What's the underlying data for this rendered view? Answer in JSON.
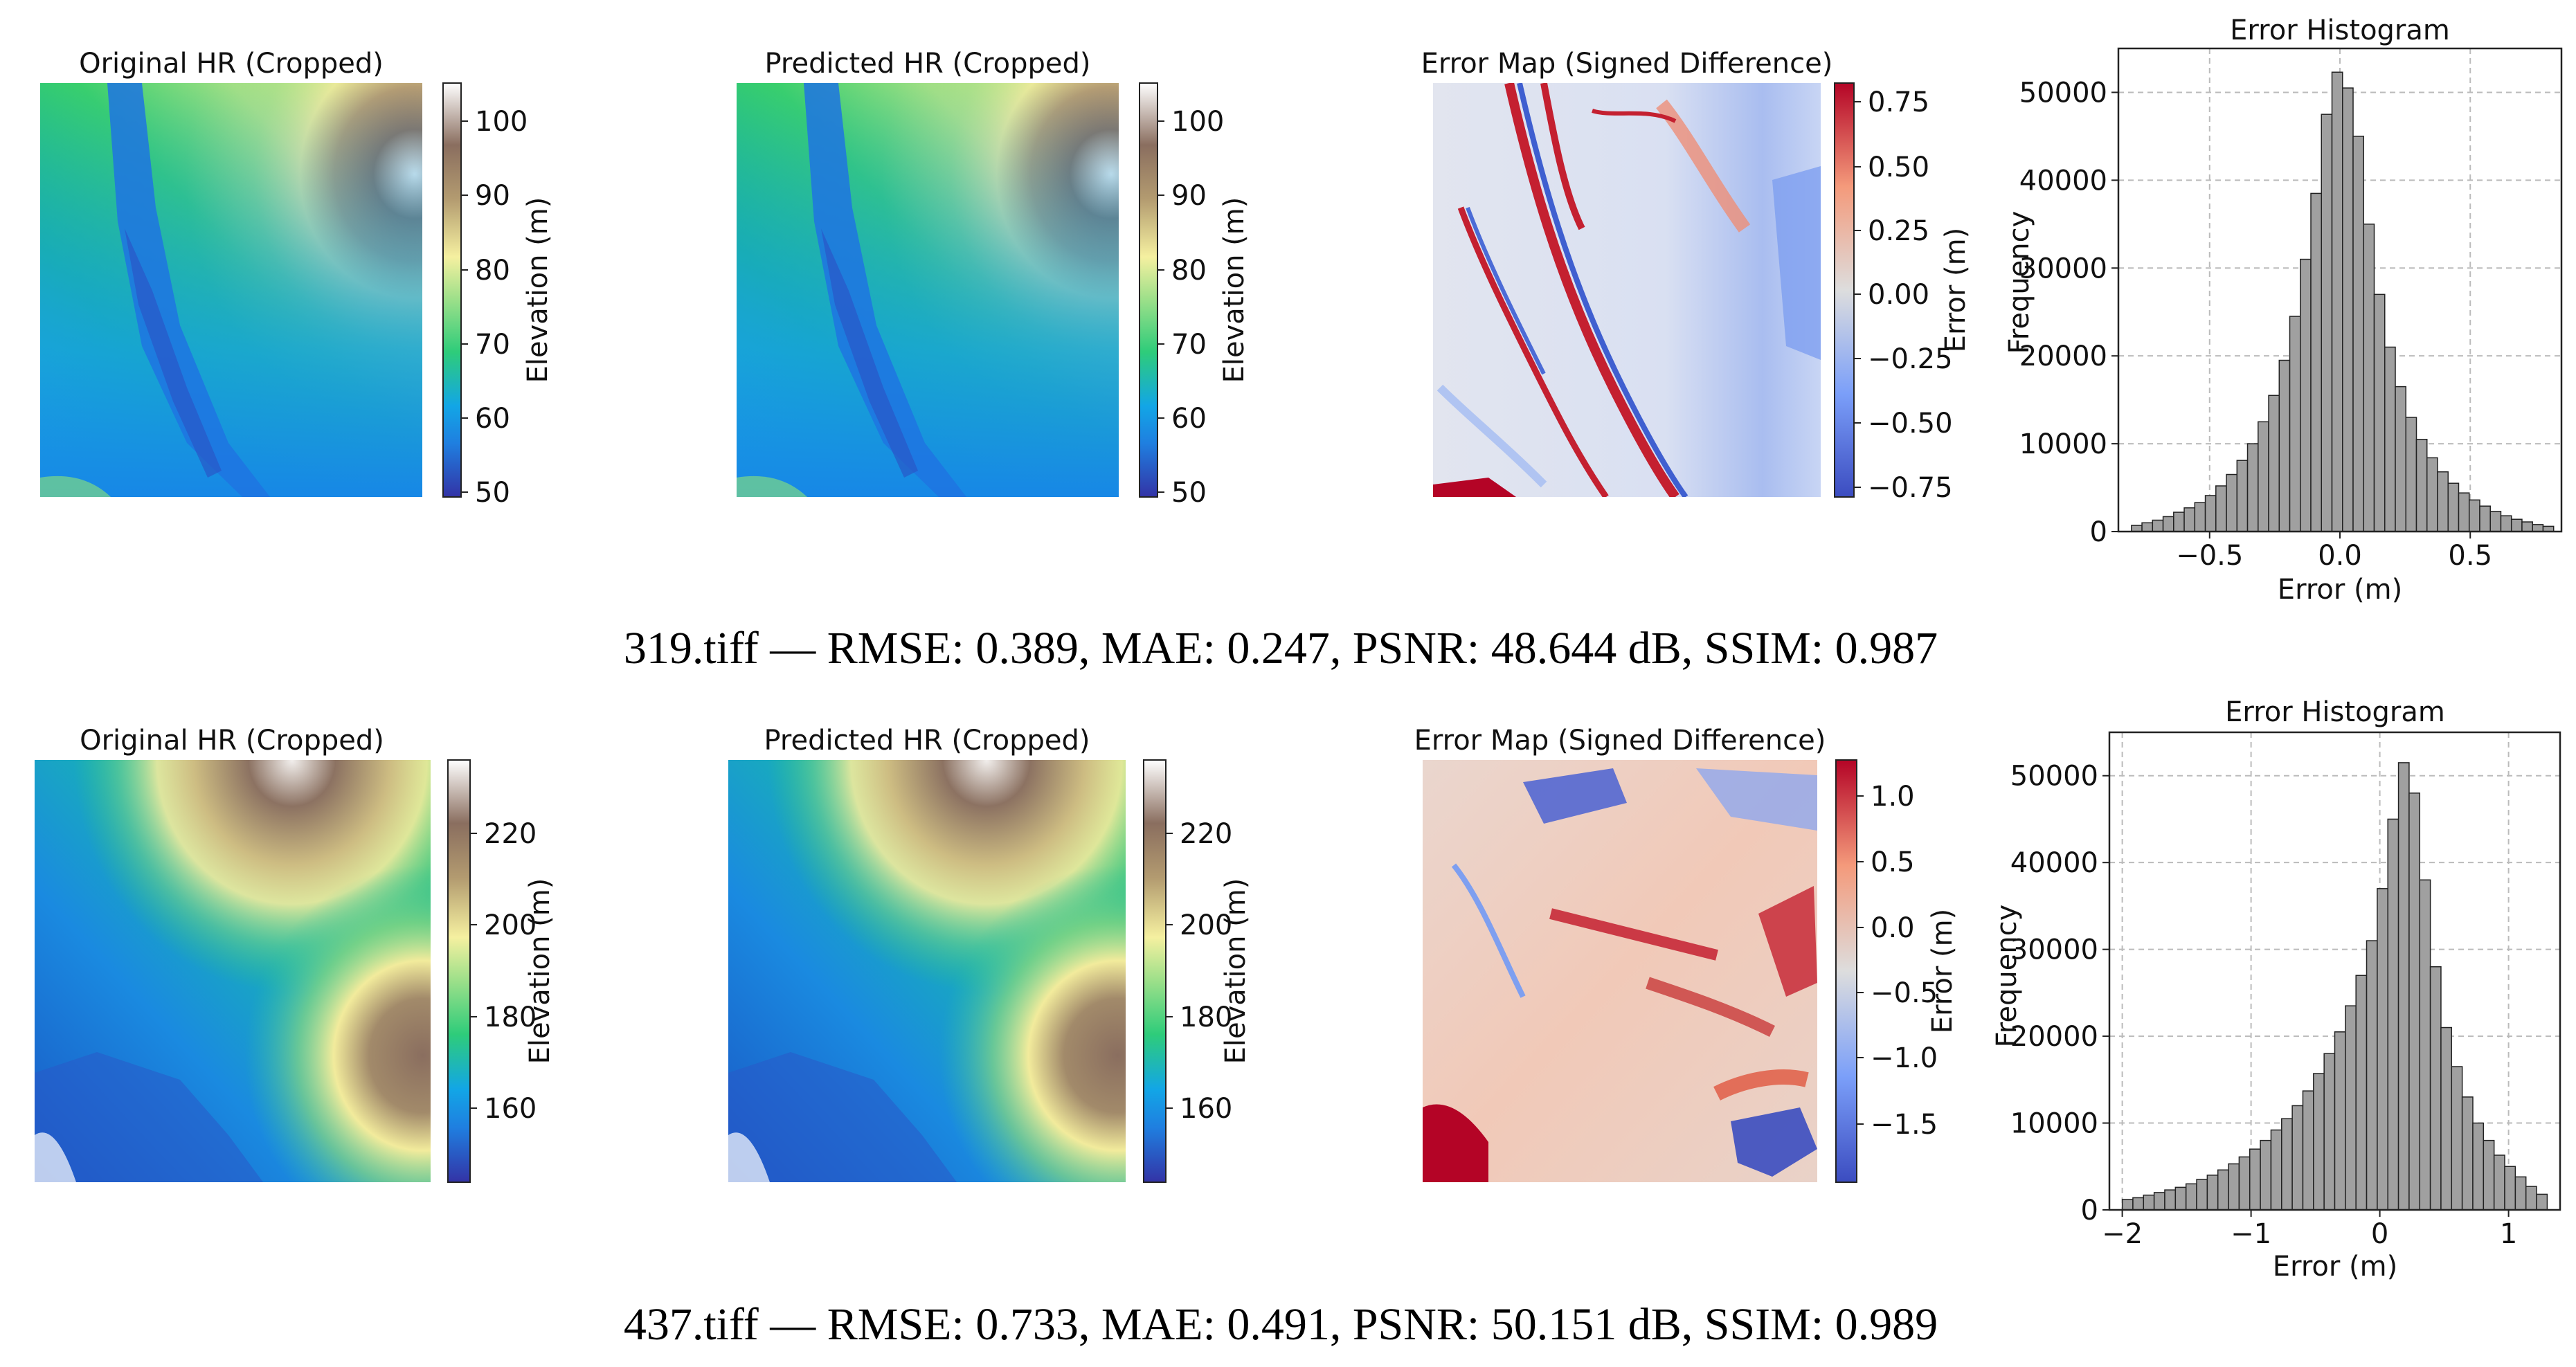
{
  "rows": [
    {
      "panels": {
        "orig_title": "Original HR (Cropped)",
        "pred_title": "Predicted HR (Cropped)",
        "err_title": "Error Map (Signed Difference)",
        "hist_title": "Error Histogram"
      },
      "elev_ticks": [
        "100",
        "90",
        "80",
        "70",
        "60",
        "50"
      ],
      "elev_label": "Elevation (m)",
      "err_ticks": [
        "0.75",
        "0.50",
        "0.25",
        "0.00",
        "−0.25",
        "−0.50",
        "−0.75"
      ],
      "err_label": "Error (m)",
      "caption": "319.tiff — RMSE: 0.389, MAE: 0.247, PSNR: 48.644 dB, SSIM: 0.987"
    },
    {
      "panels": {
        "orig_title": "Original HR (Cropped)",
        "pred_title": "Predicted HR (Cropped)",
        "err_title": "Error Map (Signed Difference)",
        "hist_title": "Error Histogram"
      },
      "elev_ticks": [
        "220",
        "200",
        "180",
        "160"
      ],
      "elev_label": "Elevation (m)",
      "err_ticks": [
        "1.0",
        "0.5",
        "0.0",
        "−0.5",
        "−1.0",
        "−1.5"
      ],
      "err_label": "Error (m)",
      "caption": "437.tiff — RMSE: 0.733, MAE: 0.491, PSNR: 50.151 dB, SSIM: 0.989"
    }
  ],
  "chart_data": [
    {
      "type": "bar",
      "title": "Error Histogram",
      "xlabel": "Error (m)",
      "ylabel": "Frequency",
      "xlim": [
        -0.85,
        0.85
      ],
      "ylim": [
        0,
        55000
      ],
      "xticks": [
        "−0.5",
        "0.0",
        "0.5"
      ],
      "xtick_values": [
        -0.5,
        0.0,
        0.5
      ],
      "yticks": [
        "0",
        "10000",
        "20000",
        "30000",
        "40000",
        "50000"
      ],
      "ytick_values": [
        0,
        10000,
        20000,
        30000,
        40000,
        50000
      ],
      "grid": true,
      "bin_range": [
        -0.8,
        0.82
      ],
      "values": [
        700,
        1000,
        1300,
        1700,
        2200,
        2700,
        3300,
        4100,
        5200,
        6500,
        8100,
        10000,
        12500,
        15500,
        19500,
        24500,
        31000,
        38500,
        47500,
        52300,
        50500,
        45000,
        35000,
        27000,
        21000,
        16500,
        13000,
        10500,
        8400,
        6800,
        5500,
        4400,
        3600,
        2900,
        2300,
        1800,
        1400,
        1100,
        800,
        600
      ]
    },
    {
      "type": "bar",
      "title": "Error Histogram",
      "xlabel": "Error (m)",
      "ylabel": "Frequency",
      "xlim": [
        -2.1,
        1.4
      ],
      "ylim": [
        0,
        55000
      ],
      "xticks": [
        "−2",
        "−1",
        "0",
        "1"
      ],
      "xtick_values": [
        -2,
        -1,
        0,
        1
      ],
      "yticks": [
        "0",
        "10000",
        "20000",
        "30000",
        "40000",
        "50000"
      ],
      "ytick_values": [
        0,
        10000,
        20000,
        30000,
        40000,
        50000
      ],
      "grid": true,
      "bin_range": [
        -2.0,
        1.3
      ],
      "values": [
        1200,
        1400,
        1700,
        2000,
        2300,
        2600,
        3000,
        3500,
        4000,
        4600,
        5300,
        6100,
        7000,
        8000,
        9200,
        10500,
        12000,
        13700,
        15700,
        18000,
        20500,
        23500,
        27000,
        31000,
        37000,
        45000,
        51500,
        48000,
        38000,
        28000,
        21000,
        16500,
        13000,
        10000,
        8000,
        6300,
        5000,
        3800,
        2700,
        1800
      ]
    }
  ]
}
